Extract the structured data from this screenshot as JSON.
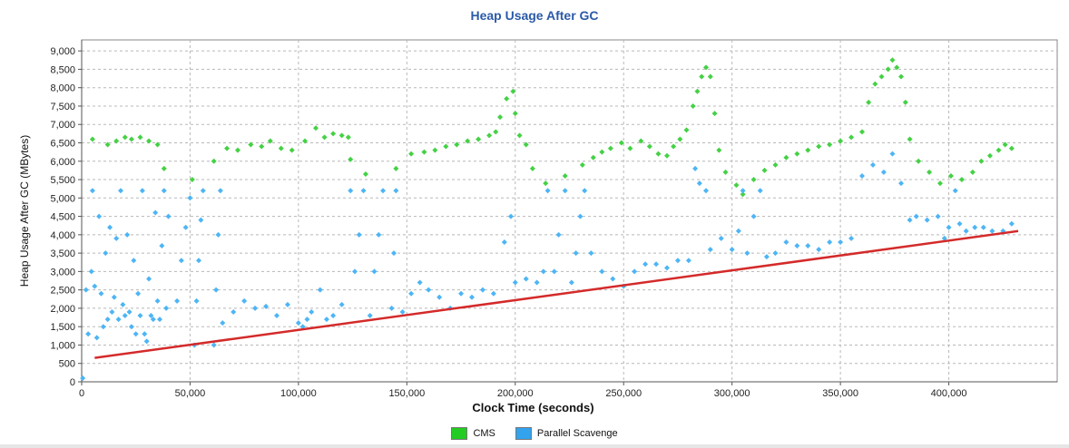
{
  "chart_data": {
    "type": "scatter",
    "title": "Heap Usage After GC",
    "xlabel": "Clock Time  (seconds)",
    "ylabel": "Heap Usage After GC  (MBytes)",
    "xlim": [
      0,
      450000
    ],
    "ylim": [
      0,
      9300
    ],
    "x_ticks": [
      "0",
      "50,000",
      "100,000",
      "150,000",
      "200,000",
      "250,000",
      "300,000",
      "350,000",
      "400,000"
    ],
    "x_tick_values": [
      0,
      50000,
      100000,
      150000,
      200000,
      250000,
      300000,
      350000,
      400000
    ],
    "y_ticks": [
      "0",
      "500",
      "1,000",
      "1,500",
      "2,000",
      "2,500",
      "3,000",
      "3,500",
      "4,000",
      "4,500",
      "5,000",
      "5,500",
      "6,000",
      "6,500",
      "7,000",
      "7,500",
      "8,000",
      "8,500",
      "9,000"
    ],
    "y_tick_values": [
      0,
      500,
      1000,
      1500,
      2000,
      2500,
      3000,
      3500,
      4000,
      4500,
      5000,
      5500,
      6000,
      6500,
      7000,
      7500,
      8000,
      8500,
      9000
    ],
    "grid": true,
    "legend_position": "bottom",
    "series": [
      {
        "name": "CMS",
        "color": "#44d144",
        "points": [
          [
            5000,
            6600
          ],
          [
            12000,
            6450
          ],
          [
            16000,
            6550
          ],
          [
            20000,
            6650
          ],
          [
            23000,
            6600
          ],
          [
            27000,
            6650
          ],
          [
            31000,
            6550
          ],
          [
            35000,
            6450
          ],
          [
            38000,
            5800
          ],
          [
            51000,
            5500
          ],
          [
            61000,
            6000
          ],
          [
            67000,
            6350
          ],
          [
            72000,
            6300
          ],
          [
            78000,
            6450
          ],
          [
            83000,
            6400
          ],
          [
            87000,
            6550
          ],
          [
            92000,
            6350
          ],
          [
            97000,
            6300
          ],
          [
            103000,
            6550
          ],
          [
            108000,
            6900
          ],
          [
            112000,
            6650
          ],
          [
            116000,
            6750
          ],
          [
            120000,
            6700
          ],
          [
            123000,
            6650
          ],
          [
            124000,
            6050
          ],
          [
            131000,
            5650
          ],
          [
            145000,
            5800
          ],
          [
            152000,
            6200
          ],
          [
            158000,
            6250
          ],
          [
            163000,
            6300
          ],
          [
            168000,
            6400
          ],
          [
            173000,
            6450
          ],
          [
            178000,
            6550
          ],
          [
            183000,
            6600
          ],
          [
            188000,
            6700
          ],
          [
            191000,
            6800
          ],
          [
            193000,
            7200
          ],
          [
            196000,
            7700
          ],
          [
            199000,
            7900
          ],
          [
            200000,
            7300
          ],
          [
            202000,
            6700
          ],
          [
            205000,
            6450
          ],
          [
            208000,
            5800
          ],
          [
            214000,
            5400
          ],
          [
            223000,
            5600
          ],
          [
            231000,
            5900
          ],
          [
            236000,
            6100
          ],
          [
            240000,
            6250
          ],
          [
            244000,
            6350
          ],
          [
            249000,
            6500
          ],
          [
            253000,
            6350
          ],
          [
            258000,
            6550
          ],
          [
            262000,
            6400
          ],
          [
            266000,
            6200
          ],
          [
            270000,
            6150
          ],
          [
            273000,
            6400
          ],
          [
            276000,
            6600
          ],
          [
            279000,
            6850
          ],
          [
            282000,
            7500
          ],
          [
            284000,
            7900
          ],
          [
            286000,
            8300
          ],
          [
            288000,
            8550
          ],
          [
            290000,
            8300
          ],
          [
            292000,
            7300
          ],
          [
            294000,
            6300
          ],
          [
            297000,
            5700
          ],
          [
            302000,
            5350
          ],
          [
            305000,
            5100
          ],
          [
            310000,
            5500
          ],
          [
            315000,
            5750
          ],
          [
            320000,
            5900
          ],
          [
            325000,
            6100
          ],
          [
            330000,
            6200
          ],
          [
            335000,
            6300
          ],
          [
            340000,
            6400
          ],
          [
            345000,
            6450
          ],
          [
            350000,
            6550
          ],
          [
            355000,
            6650
          ],
          [
            360000,
            6800
          ],
          [
            363000,
            7600
          ],
          [
            366000,
            8100
          ],
          [
            369000,
            8300
          ],
          [
            372000,
            8500
          ],
          [
            374000,
            8750
          ],
          [
            376000,
            8550
          ],
          [
            378000,
            8300
          ],
          [
            380000,
            7600
          ],
          [
            382000,
            6600
          ],
          [
            386000,
            6000
          ],
          [
            391000,
            5700
          ],
          [
            396000,
            5400
          ],
          [
            401000,
            5600
          ],
          [
            406000,
            5500
          ],
          [
            411000,
            5700
          ],
          [
            415000,
            6000
          ],
          [
            419000,
            6150
          ],
          [
            423000,
            6300
          ],
          [
            426000,
            6450
          ],
          [
            429000,
            6350
          ]
        ]
      },
      {
        "name": "Parallel Scavenge",
        "color": "#4db5f5",
        "points": [
          [
            500,
            100
          ],
          [
            2000,
            2500
          ],
          [
            3000,
            1300
          ],
          [
            4500,
            3000
          ],
          [
            5000,
            5200
          ],
          [
            6000,
            2600
          ],
          [
            7000,
            1200
          ],
          [
            8000,
            4500
          ],
          [
            9000,
            2400
          ],
          [
            10000,
            1500
          ],
          [
            11000,
            3500
          ],
          [
            12000,
            1700
          ],
          [
            13000,
            4200
          ],
          [
            14000,
            1900
          ],
          [
            15000,
            2300
          ],
          [
            16000,
            3900
          ],
          [
            17000,
            1700
          ],
          [
            18000,
            5200
          ],
          [
            19000,
            2100
          ],
          [
            20000,
            1800
          ],
          [
            21000,
            4000
          ],
          [
            22000,
            1900
          ],
          [
            23000,
            1500
          ],
          [
            24000,
            3300
          ],
          [
            25000,
            1300
          ],
          [
            26000,
            2400
          ],
          [
            27000,
            1800
          ],
          [
            28000,
            5200
          ],
          [
            29000,
            1300
          ],
          [
            30000,
            1100
          ],
          [
            31000,
            2800
          ],
          [
            32000,
            1800
          ],
          [
            33000,
            1700
          ],
          [
            34000,
            4600
          ],
          [
            35000,
            2200
          ],
          [
            36000,
            1700
          ],
          [
            37000,
            3700
          ],
          [
            38000,
            5200
          ],
          [
            39000,
            2000
          ],
          [
            40000,
            4500
          ],
          [
            44000,
            2200
          ],
          [
            46000,
            3300
          ],
          [
            48000,
            4200
          ],
          [
            50000,
            5000
          ],
          [
            52000,
            1000
          ],
          [
            53000,
            2200
          ],
          [
            54000,
            3300
          ],
          [
            55000,
            4400
          ],
          [
            56000,
            5200
          ],
          [
            61000,
            1000
          ],
          [
            62000,
            2500
          ],
          [
            63000,
            4000
          ],
          [
            64000,
            5200
          ],
          [
            65000,
            1600
          ],
          [
            70000,
            1900
          ],
          [
            75000,
            2200
          ],
          [
            80000,
            2000
          ],
          [
            85000,
            2050
          ],
          [
            90000,
            1800
          ],
          [
            95000,
            2100
          ],
          [
            100000,
            1600
          ],
          [
            102000,
            1500
          ],
          [
            104000,
            1700
          ],
          [
            106000,
            1900
          ],
          [
            110000,
            2500
          ],
          [
            113000,
            1700
          ],
          [
            116000,
            1800
          ],
          [
            120000,
            2100
          ],
          [
            124000,
            5200
          ],
          [
            126000,
            3000
          ],
          [
            128000,
            4000
          ],
          [
            130000,
            5200
          ],
          [
            133000,
            1800
          ],
          [
            135000,
            3000
          ],
          [
            137000,
            4000
          ],
          [
            139000,
            5200
          ],
          [
            143000,
            2000
          ],
          [
            144000,
            3500
          ],
          [
            145000,
            5200
          ],
          [
            148000,
            1900
          ],
          [
            152000,
            2400
          ],
          [
            156000,
            2700
          ],
          [
            160000,
            2500
          ],
          [
            165000,
            2300
          ],
          [
            170000,
            2000
          ],
          [
            175000,
            2400
          ],
          [
            180000,
            2300
          ],
          [
            185000,
            2500
          ],
          [
            190000,
            2400
          ],
          [
            195000,
            3800
          ],
          [
            198000,
            4500
          ],
          [
            200000,
            2700
          ],
          [
            205000,
            2800
          ],
          [
            210000,
            2700
          ],
          [
            213000,
            3000
          ],
          [
            215000,
            5200
          ],
          [
            218000,
            3000
          ],
          [
            220000,
            4000
          ],
          [
            223000,
            5200
          ],
          [
            226000,
            2700
          ],
          [
            228000,
            3500
          ],
          [
            230000,
            4500
          ],
          [
            232000,
            5200
          ],
          [
            235000,
            3500
          ],
          [
            240000,
            3000
          ],
          [
            245000,
            2800
          ],
          [
            250000,
            2600
          ],
          [
            255000,
            3000
          ],
          [
            260000,
            3200
          ],
          [
            265000,
            3200
          ],
          [
            270000,
            3100
          ],
          [
            275000,
            3300
          ],
          [
            280000,
            3300
          ],
          [
            283000,
            5800
          ],
          [
            285000,
            5400
          ],
          [
            288000,
            5200
          ],
          [
            290000,
            3600
          ],
          [
            295000,
            3900
          ],
          [
            300000,
            3600
          ],
          [
            303000,
            4100
          ],
          [
            305000,
            5200
          ],
          [
            307000,
            3500
          ],
          [
            310000,
            4500
          ],
          [
            313000,
            5200
          ],
          [
            316000,
            3400
          ],
          [
            320000,
            3500
          ],
          [
            325000,
            3800
          ],
          [
            330000,
            3700
          ],
          [
            335000,
            3700
          ],
          [
            340000,
            3600
          ],
          [
            345000,
            3800
          ],
          [
            350000,
            3800
          ],
          [
            355000,
            3900
          ],
          [
            360000,
            5600
          ],
          [
            365000,
            5900
          ],
          [
            370000,
            5700
          ],
          [
            374000,
            6200
          ],
          [
            378000,
            5400
          ],
          [
            382000,
            4400
          ],
          [
            385000,
            4500
          ],
          [
            390000,
            4400
          ],
          [
            395000,
            4500
          ],
          [
            398000,
            3900
          ],
          [
            400000,
            4200
          ],
          [
            403000,
            5200
          ],
          [
            405000,
            4300
          ],
          [
            408000,
            4100
          ],
          [
            412000,
            4200
          ],
          [
            416000,
            4200
          ],
          [
            420000,
            4100
          ],
          [
            425000,
            4100
          ],
          [
            429000,
            4300
          ]
        ]
      },
      {
        "name": "",
        "type": "line",
        "color": "#d42a2a",
        "points": [
          [
            6000,
            650
          ],
          [
            432000,
            4100
          ]
        ]
      }
    ]
  },
  "legend": {
    "items": [
      {
        "label": "CMS",
        "color": "#22cc22"
      },
      {
        "label": "Parallel Scavenge",
        "color": "#33a3ee"
      }
    ]
  }
}
